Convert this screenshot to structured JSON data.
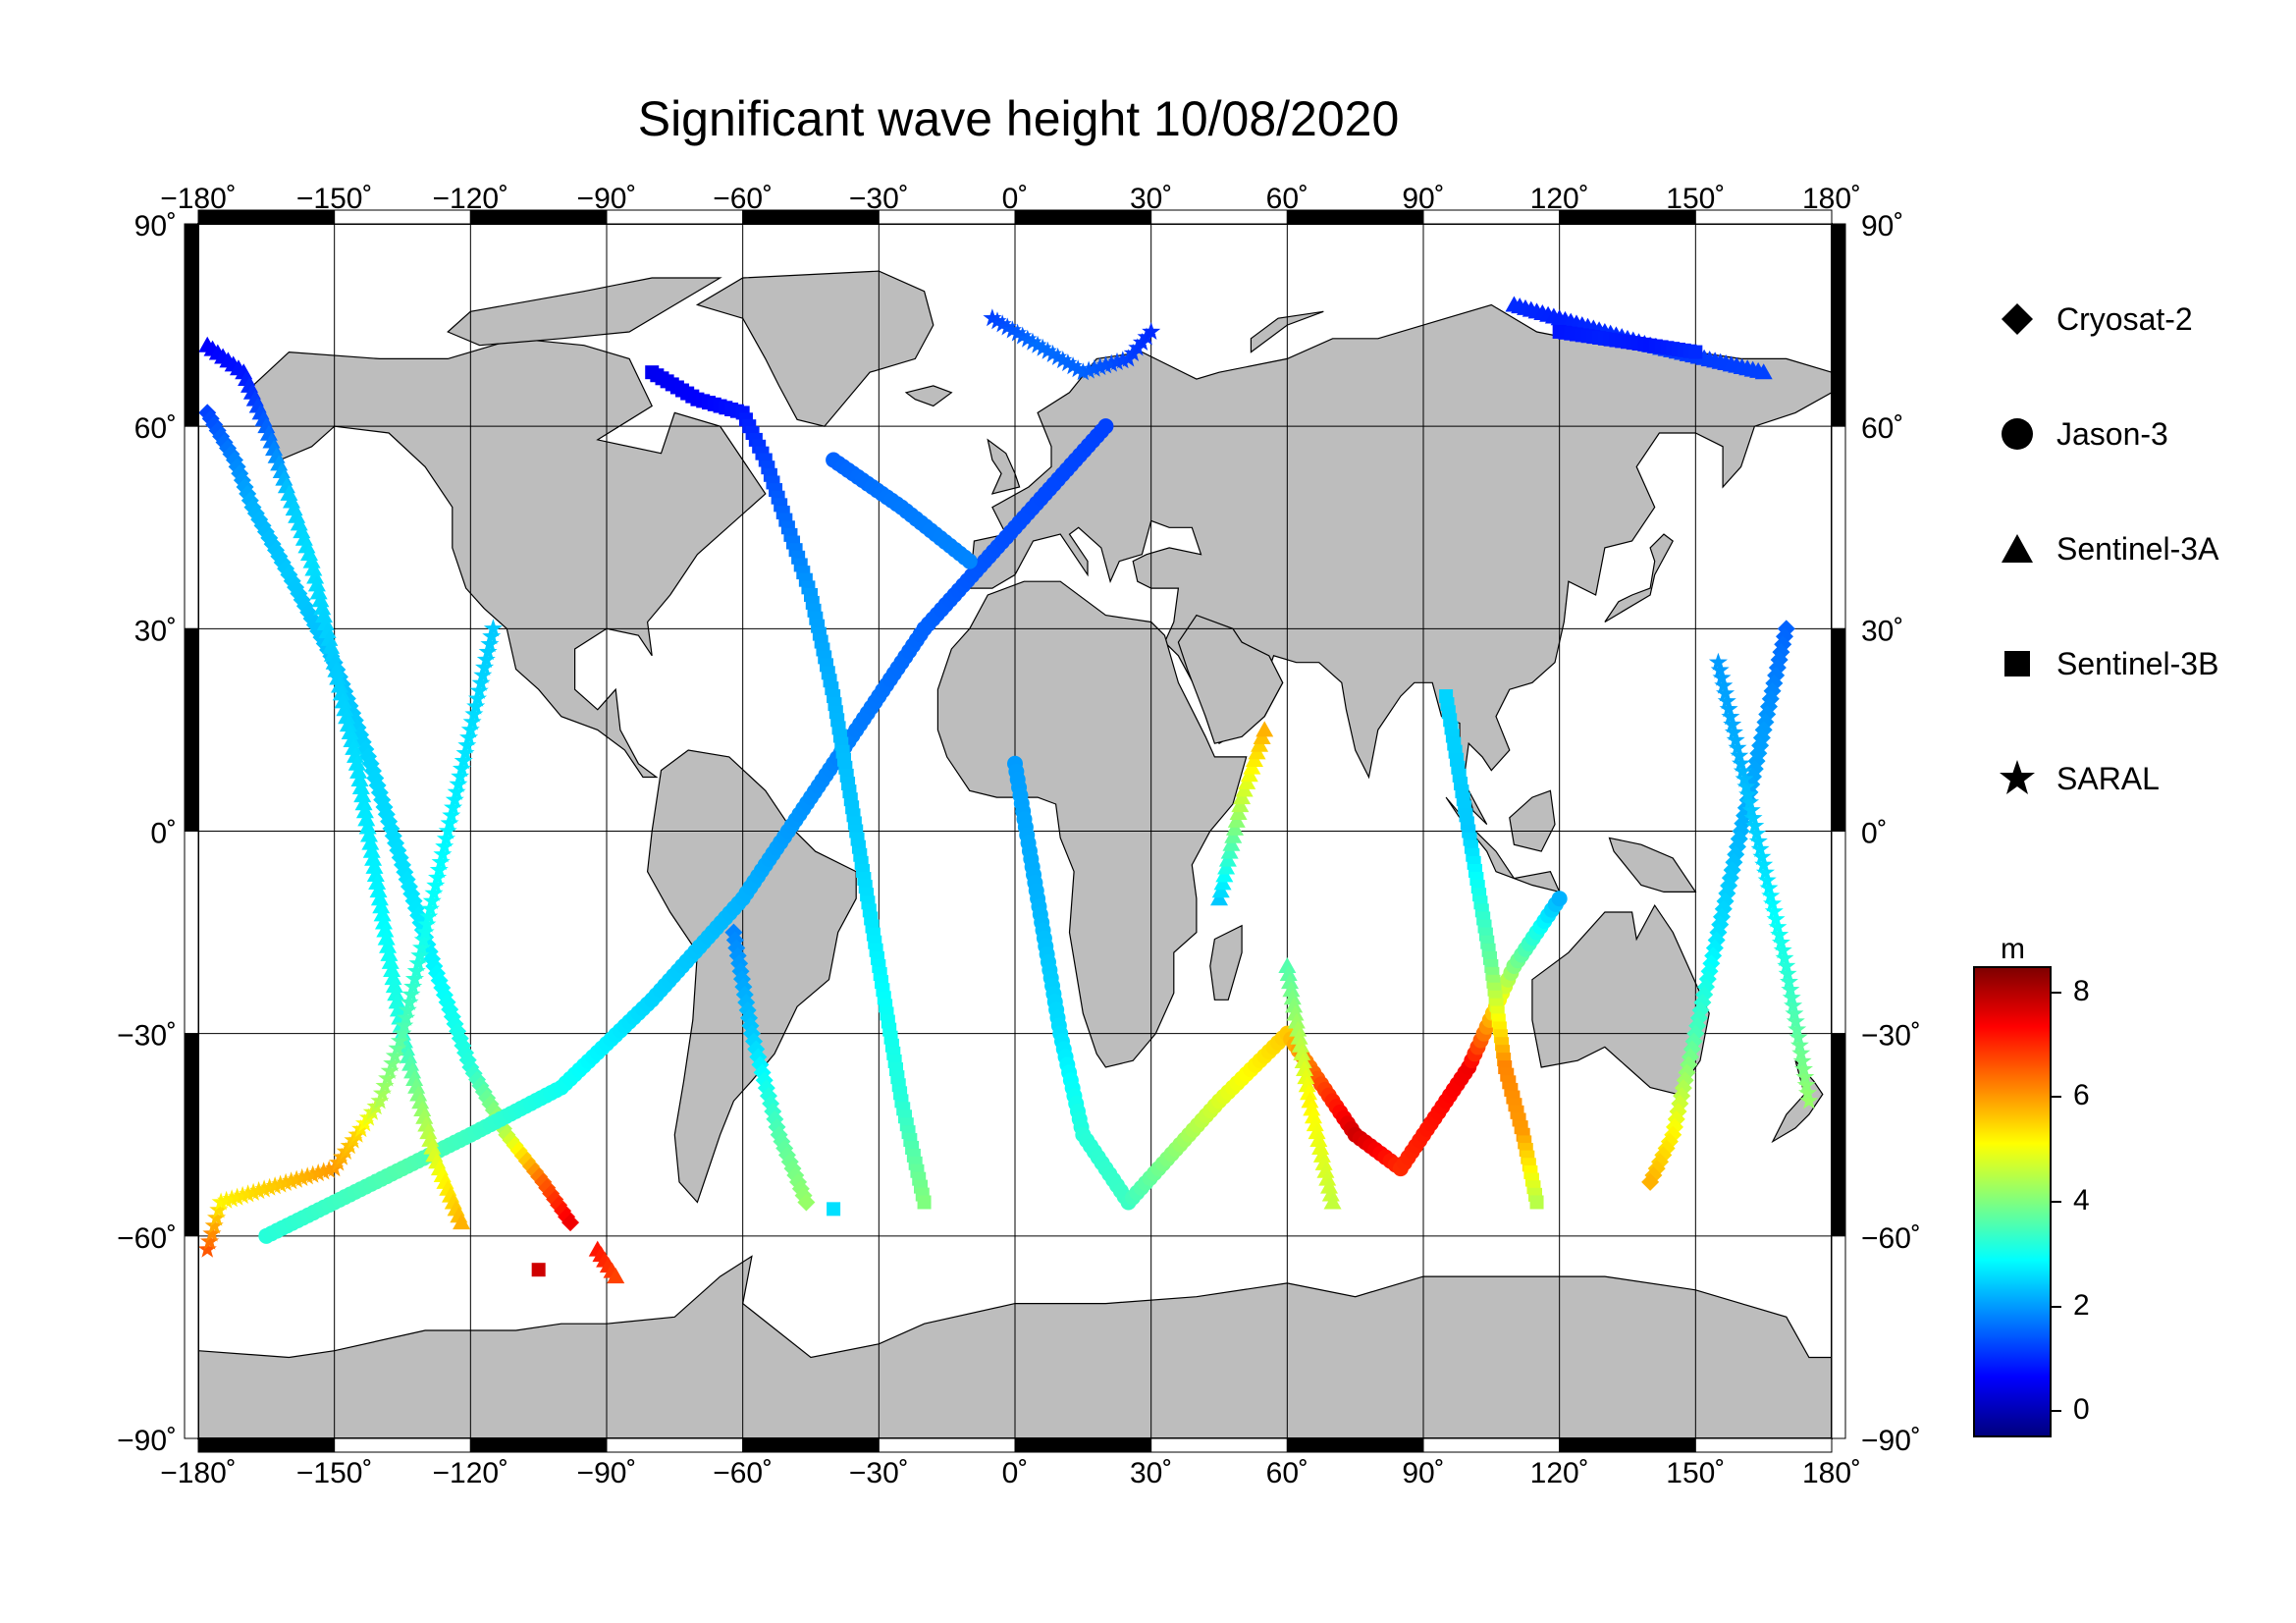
{
  "title": "Significant wave height 10/08/2020",
  "colors": {
    "land": "#bdbdbd",
    "ocean": "#ffffff",
    "frame_dark": "#000000",
    "colormap": [
      "#00007f",
      "#0000ff",
      "#007fff",
      "#00ffff",
      "#7fff7f",
      "#ffff00",
      "#ff7f00",
      "#ff0000",
      "#7f0000"
    ]
  },
  "axes": {
    "lon_ticks": [
      "−180˚",
      "−150˚",
      "−120˚",
      "−90˚",
      "−60˚",
      "−30˚",
      "0˚",
      "30˚",
      "60˚",
      "90˚",
      "120˚",
      "150˚",
      "180˚"
    ],
    "lat_ticks_left": [
      "90˚",
      "60˚",
      "30˚",
      "0˚",
      "−30˚",
      "−60˚",
      "−90˚"
    ],
    "lat_ticks_right": [
      "90˚",
      "60˚",
      "30˚",
      "0˚",
      "−30˚",
      "−60˚",
      "−90˚"
    ],
    "lon_range": [
      -180,
      180
    ],
    "lat_range": [
      -90,
      90
    ],
    "grid": true
  },
  "legend": {
    "items": [
      {
        "label": "Cryosat-2",
        "symbol": "diamond-icon"
      },
      {
        "label": "Jason-3",
        "symbol": "circle-icon"
      },
      {
        "label": "Sentinel-3A",
        "symbol": "triangle-icon"
      },
      {
        "label": "Sentinel-3B",
        "symbol": "square-icon"
      },
      {
        "label": "SARAL",
        "symbol": "star-icon"
      }
    ]
  },
  "colorbar": {
    "unit": "m",
    "min": -0.5,
    "max": 8.5,
    "ticks": [
      "8",
      "6",
      "4",
      "2",
      "0"
    ],
    "tick_values": [
      8,
      6,
      4,
      2,
      0
    ]
  },
  "chart_data": {
    "type": "scatter",
    "title": "Significant wave height 10/08/2020",
    "xlabel": "",
    "ylabel": "",
    "xlim": [
      -180,
      180
    ],
    "ylim": [
      -90,
      90
    ],
    "series": [
      {
        "name": "Cryosat-2",
        "points": [
          [
            -178,
            62,
            1.2
          ],
          [
            -172,
            55,
            1.8
          ],
          [
            -168,
            48,
            2.2
          ],
          [
            -160,
            38,
            2.4
          ],
          [
            -150,
            25,
            2.3
          ],
          [
            -142,
            10,
            2.5
          ],
          [
            -135,
            -5,
            2.6
          ],
          [
            -128,
            -20,
            2.8
          ],
          [
            -120,
            -35,
            3.2
          ],
          [
            -112,
            -45,
            4.5
          ],
          [
            -104,
            -52,
            6.5
          ],
          [
            -98,
            -58,
            7.5
          ],
          [
            -62,
            -15,
            1.8
          ],
          [
            -58,
            -30,
            2.4
          ],
          [
            -52,
            -45,
            3.6
          ],
          [
            -46,
            -55,
            4.2
          ],
          [
            170,
            30,
            1.5
          ],
          [
            165,
            15,
            2.0
          ],
          [
            160,
            0,
            2.2
          ],
          [
            155,
            -15,
            2.6
          ],
          [
            150,
            -30,
            3.5
          ],
          [
            145,
            -45,
            5.2
          ],
          [
            140,
            -52,
            5.8
          ]
        ]
      },
      {
        "name": "Jason-3",
        "points": [
          [
            -165,
            -60,
            3.2
          ],
          [
            -150,
            -55,
            3.4
          ],
          [
            -135,
            -50,
            3.6
          ],
          [
            -120,
            -45,
            3.4
          ],
          [
            -100,
            -38,
            3.0
          ],
          [
            -80,
            -25,
            2.5
          ],
          [
            -60,
            -10,
            2.2
          ],
          [
            -40,
            10,
            1.8
          ],
          [
            -20,
            30,
            1.5
          ],
          [
            0,
            45,
            1.3
          ],
          [
            20,
            60,
            1.2
          ],
          [
            -40,
            55,
            1.5
          ],
          [
            -25,
            48,
            1.7
          ],
          [
            -10,
            40,
            1.8
          ],
          [
            0,
            10,
            2.0
          ],
          [
            5,
            -10,
            2.2
          ],
          [
            10,
            -30,
            2.6
          ],
          [
            15,
            -45,
            3.2
          ],
          [
            25,
            -55,
            3.4
          ],
          [
            45,
            -40,
            4.8
          ],
          [
            60,
            -30,
            5.6
          ],
          [
            75,
            -45,
            7.8
          ],
          [
            85,
            -50,
            7.0
          ],
          [
            100,
            -35,
            7.5
          ],
          [
            110,
            -20,
            4.0
          ],
          [
            120,
            -10,
            2.2
          ]
        ]
      },
      {
        "name": "Sentinel-3A",
        "points": [
          [
            -178,
            72,
            0.6
          ],
          [
            -170,
            68,
            0.8
          ],
          [
            -165,
            60,
            1.5
          ],
          [
            -160,
            50,
            2.4
          ],
          [
            -155,
            40,
            2.6
          ],
          [
            -150,
            25,
            2.4
          ],
          [
            -145,
            10,
            2.6
          ],
          [
            -140,
            -10,
            2.8
          ],
          [
            -135,
            -30,
            3.2
          ],
          [
            -128,
            -48,
            4.8
          ],
          [
            -122,
            -58,
            5.8
          ],
          [
            -92,
            -62,
            7.2
          ],
          [
            -88,
            -66,
            6.8
          ],
          [
            110,
            78,
            1.0
          ],
          [
            120,
            76,
            0.9
          ],
          [
            130,
            74,
            1.0
          ],
          [
            140,
            72,
            1.1
          ],
          [
            165,
            68,
            1.2
          ],
          [
            45,
            -10,
            2.4
          ],
          [
            50,
            5,
            4.6
          ],
          [
            55,
            15,
            5.8
          ],
          [
            60,
            -20,
            3.6
          ],
          [
            65,
            -40,
            5.2
          ],
          [
            70,
            -55,
            4.6
          ]
        ]
      },
      {
        "name": "Sentinel-3B",
        "points": [
          [
            -80,
            68,
            0.5
          ],
          [
            -70,
            64,
            0.6
          ],
          [
            -60,
            62,
            0.8
          ],
          [
            -55,
            55,
            1.2
          ],
          [
            -50,
            45,
            1.6
          ],
          [
            -45,
            35,
            2.0
          ],
          [
            -40,
            20,
            2.2
          ],
          [
            -35,
            0,
            2.4
          ],
          [
            -30,
            -20,
            2.8
          ],
          [
            -25,
            -40,
            3.2
          ],
          [
            -20,
            -55,
            4.0
          ],
          [
            -105,
            -65,
            7.8
          ],
          [
            -40,
            -56,
            2.6
          ],
          [
            120,
            74,
            0.8
          ],
          [
            130,
            73,
            0.9
          ],
          [
            140,
            72,
            0.8
          ],
          [
            150,
            71,
            1.0
          ],
          [
            95,
            20,
            2.5
          ],
          [
            100,
            0,
            2.4
          ],
          [
            105,
            -20,
            3.8
          ],
          [
            108,
            -35,
            6.2
          ],
          [
            112,
            -45,
            6.0
          ],
          [
            115,
            -55,
            4.5
          ]
        ]
      },
      {
        "name": "SARAL",
        "points": [
          [
            -5,
            76,
            1.2
          ],
          [
            5,
            72,
            1.6
          ],
          [
            15,
            68,
            1.5
          ],
          [
            25,
            70,
            1.2
          ],
          [
            30,
            74,
            1.0
          ],
          [
            -178,
            -62,
            6.6
          ],
          [
            -175,
            -55,
            5.2
          ],
          [
            -150,
            -50,
            6.0
          ],
          [
            -145,
            -45,
            5.5
          ],
          [
            -140,
            -40,
            4.4
          ],
          [
            -135,
            -30,
            3.6
          ],
          [
            -130,
            -15,
            3.0
          ],
          [
            -125,
            0,
            2.8
          ],
          [
            -120,
            15,
            2.6
          ],
          [
            -115,
            30,
            2.4
          ],
          [
            175,
            -40,
            4.2
          ],
          [
            170,
            -20,
            3.2
          ],
          [
            165,
            -5,
            2.6
          ],
          [
            160,
            10,
            2.2
          ],
          [
            155,
            25,
            2.0
          ]
        ]
      }
    ]
  }
}
